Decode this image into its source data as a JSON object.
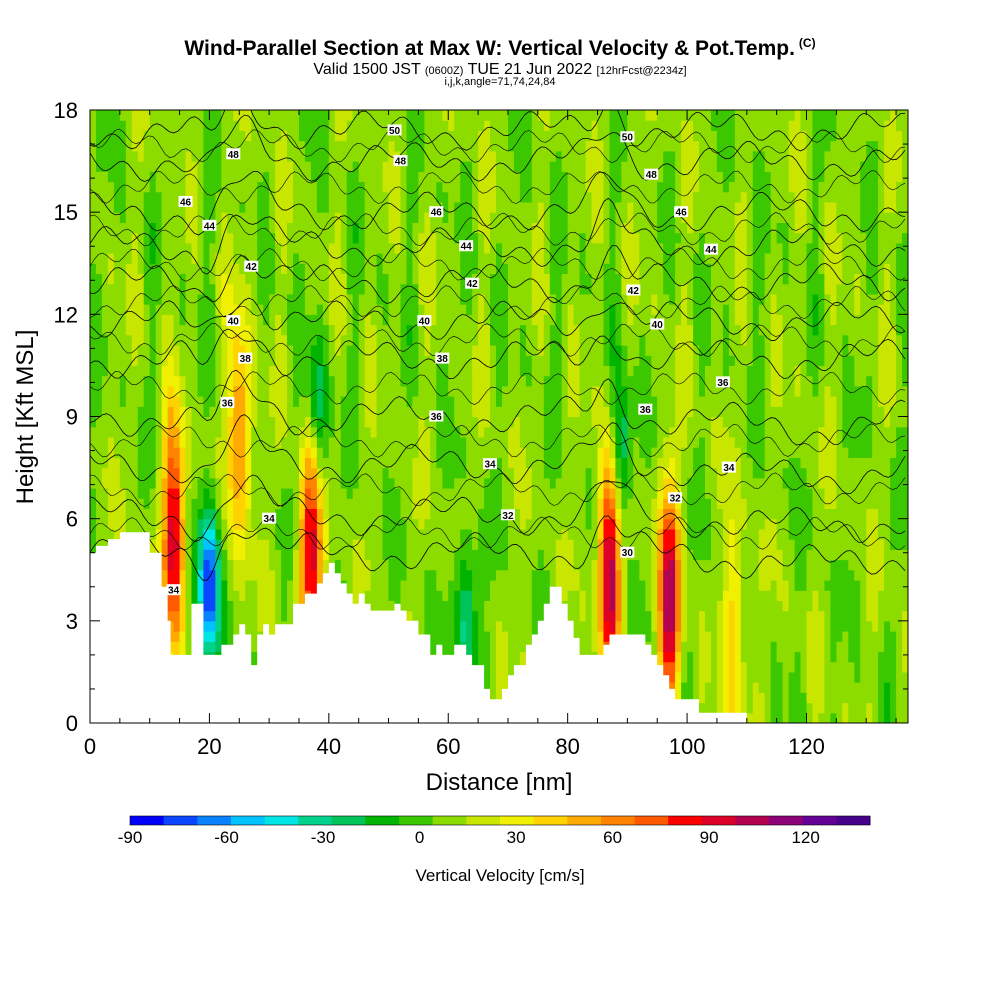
{
  "title": {
    "main": "Wind-Parallel Section at Max W: Vertical Velocity & Pot.Temp.",
    "copyright": "(C)",
    "valid_prefix": "Valid 1500 JST",
    "valid_utc": "(0600Z)",
    "valid_date": "TUE 21 Jun 2022",
    "forecast": "[12hrFcst@2234z]",
    "indices": "i,j,k,angle=71,74,24,84"
  },
  "chart_data": {
    "type": "heatmap",
    "xlabel": "Distance [nm]",
    "ylabel": "Height [Kft MSL]",
    "xlim": [
      0,
      137
    ],
    "ylim": [
      0,
      18
    ],
    "x_ticks": [
      0,
      20,
      40,
      60,
      80,
      100,
      120
    ],
    "y_ticks": [
      0,
      3,
      6,
      9,
      12,
      15,
      18
    ],
    "colorbar": {
      "label": "Vertical Velocity [cm/s]",
      "min": -90,
      "max": 130,
      "step": 10,
      "tick_values": [
        -90,
        -60,
        -30,
        0,
        30,
        60,
        90,
        120
      ],
      "colors": [
        "#0000ff",
        "#0a46ff",
        "#0a82ff",
        "#00c3ff",
        "#00e6e6",
        "#00d28c",
        "#00c35a",
        "#00b400",
        "#3cc800",
        "#8cdc00",
        "#c8e600",
        "#f0f000",
        "#ffd200",
        "#ffaa00",
        "#ff8200",
        "#ff5a00",
        "#ff0000",
        "#dc0028",
        "#b40050",
        "#8c0078",
        "#640096",
        "#46008c"
      ]
    },
    "updraft_cores": [
      {
        "x": 14,
        "y": 5.5,
        "w_cms": 85
      },
      {
        "x": 25,
        "y": 8.5,
        "w_cms": 55
      },
      {
        "x": 37,
        "y": 5.0,
        "w_cms": 85
      },
      {
        "x": 87,
        "y": 4.5,
        "w_cms": 95
      },
      {
        "x": 97,
        "y": 3.5,
        "w_cms": 90
      },
      {
        "x": 108,
        "y": 2.5,
        "w_cms": 35
      }
    ],
    "downdraft_cores": [
      {
        "x": 20,
        "y": 4.0,
        "w_cms": -90
      },
      {
        "x": 63,
        "y": 3.0,
        "w_cms": -45
      },
      {
        "x": 89,
        "y": 8.0,
        "w_cms": -45
      },
      {
        "x": 38,
        "y": 9.0,
        "w_cms": -40
      }
    ],
    "terrain": [
      [
        0,
        5.0
      ],
      [
        1,
        5.0
      ],
      [
        1,
        5.2
      ],
      [
        3,
        5.2
      ],
      [
        3,
        5.4
      ],
      [
        5,
        5.4
      ],
      [
        5,
        5.6
      ],
      [
        10,
        5.6
      ],
      [
        10,
        5.0
      ],
      [
        12,
        5.0
      ],
      [
        12,
        4.0
      ],
      [
        13,
        4.0
      ],
      [
        13,
        3.0
      ],
      [
        13.5,
        3.0
      ],
      [
        13.5,
        2.0
      ],
      [
        17,
        2.0
      ],
      [
        17,
        3.5
      ],
      [
        19,
        3.5
      ],
      [
        19,
        2.0
      ],
      [
        22,
        2.0
      ],
      [
        22,
        2.3
      ],
      [
        24,
        2.3
      ],
      [
        24,
        2.6
      ],
      [
        25,
        2.6
      ],
      [
        25,
        2.9
      ],
      [
        26,
        2.9
      ],
      [
        26,
        2.6
      ],
      [
        27,
        2.6
      ],
      [
        27,
        1.7
      ],
      [
        28,
        1.7
      ],
      [
        28,
        2.6
      ],
      [
        29,
        2.6
      ],
      [
        29,
        2.9
      ],
      [
        30,
        2.9
      ],
      [
        30,
        2.6
      ],
      [
        31,
        2.6
      ],
      [
        31,
        2.9
      ],
      [
        34,
        2.9
      ],
      [
        34,
        3.5
      ],
      [
        36,
        3.5
      ],
      [
        36,
        3.8
      ],
      [
        38,
        3.8
      ],
      [
        38,
        4.1
      ],
      [
        39,
        4.1
      ],
      [
        39,
        4.4
      ],
      [
        40,
        4.4
      ],
      [
        40,
        4.7
      ],
      [
        41,
        4.7
      ],
      [
        41,
        4.4
      ],
      [
        42,
        4.4
      ],
      [
        42,
        4.1
      ],
      [
        43,
        4.1
      ],
      [
        43,
        3.8
      ],
      [
        44,
        3.8
      ],
      [
        44,
        3.5
      ],
      [
        45,
        3.5
      ],
      [
        45,
        3.8
      ],
      [
        46,
        3.8
      ],
      [
        46,
        3.5
      ],
      [
        47,
        3.5
      ],
      [
        47,
        3.3
      ],
      [
        51,
        3.3
      ],
      [
        51,
        3.5
      ],
      [
        52,
        3.5
      ],
      [
        52,
        3.3
      ],
      [
        53,
        3.3
      ],
      [
        53,
        3.0
      ],
      [
        55,
        3.0
      ],
      [
        55,
        2.6
      ],
      [
        57,
        2.6
      ],
      [
        57,
        2.0
      ],
      [
        58,
        2.0
      ],
      [
        58,
        2.3
      ],
      [
        59,
        2.3
      ],
      [
        59,
        2.0
      ],
      [
        61,
        2.0
      ],
      [
        61,
        2.3
      ],
      [
        63,
        2.3
      ],
      [
        63,
        2.0
      ],
      [
        64,
        2.0
      ],
      [
        64,
        1.7
      ],
      [
        66,
        1.7
      ],
      [
        66,
        1.0
      ],
      [
        67,
        1.0
      ],
      [
        67,
        0.7
      ],
      [
        69,
        0.7
      ],
      [
        69,
        1.0
      ],
      [
        70,
        1.0
      ],
      [
        70,
        1.4
      ],
      [
        71,
        1.4
      ],
      [
        71,
        1.7
      ],
      [
        73,
        1.7
      ],
      [
        73,
        2.3
      ],
      [
        74,
        2.3
      ],
      [
        74,
        2.6
      ],
      [
        75,
        2.6
      ],
      [
        75,
        3.0
      ],
      [
        76,
        3.0
      ],
      [
        76,
        3.5
      ],
      [
        77,
        3.5
      ],
      [
        77,
        4.0
      ],
      [
        79,
        4.0
      ],
      [
        79,
        3.5
      ],
      [
        80,
        3.5
      ],
      [
        80,
        3.0
      ],
      [
        81,
        3.0
      ],
      [
        81,
        2.5
      ],
      [
        82,
        2.5
      ],
      [
        82,
        2.0
      ],
      [
        86,
        2.0
      ],
      [
        86,
        2.3
      ],
      [
        87,
        2.3
      ],
      [
        87,
        2.6
      ],
      [
        93,
        2.6
      ],
      [
        93,
        2.3
      ],
      [
        94,
        2.3
      ],
      [
        94,
        2.0
      ],
      [
        95,
        2.0
      ],
      [
        95,
        1.7
      ],
      [
        96,
        1.7
      ],
      [
        96,
        1.4
      ],
      [
        97,
        1.4
      ],
      [
        97,
        1.0
      ],
      [
        98,
        1.0
      ],
      [
        98,
        0.7
      ],
      [
        102,
        0.7
      ],
      [
        102,
        0.3
      ],
      [
        110,
        0.3
      ],
      [
        110,
        0.0
      ],
      [
        137,
        0.0
      ]
    ],
    "isentropes": [
      {
        "theta": 30,
        "label_x": 90,
        "label_y": 5.0
      },
      {
        "theta": 32,
        "label_x": 70,
        "label_y": 6.1
      },
      {
        "theta": 34,
        "label_x": 67,
        "label_y": 7.6
      },
      {
        "theta": 36,
        "label_x": 58,
        "label_y": 9.0
      },
      {
        "theta": 38,
        "label_x": 59,
        "label_y": 10.7
      },
      {
        "theta": 40,
        "label_x": 56,
        "label_y": 11.8
      },
      {
        "theta": 42,
        "label_x": 63,
        "label_y": 12.9
      },
      {
        "theta": 44,
        "label_x": 62,
        "label_y": 14.0
      },
      {
        "theta": 46,
        "label_x": 58,
        "label_y": 15.0
      },
      {
        "theta": 48,
        "label_x": 52,
        "label_y": 16.5
      },
      {
        "theta": 50,
        "label_x": 51,
        "label_y": 17.4
      }
    ],
    "contour_labels": [
      {
        "text": "34",
        "x": 14,
        "y": 3.9
      },
      {
        "text": "34",
        "x": 30,
        "y": 6.0
      },
      {
        "text": "36",
        "x": 23,
        "y": 9.4
      },
      {
        "text": "38",
        "x": 26,
        "y": 10.7
      },
      {
        "text": "40",
        "x": 24,
        "y": 11.8
      },
      {
        "text": "42",
        "x": 27,
        "y": 13.4
      },
      {
        "text": "44",
        "x": 20,
        "y": 14.6
      },
      {
        "text": "46",
        "x": 16,
        "y": 15.3
      },
      {
        "text": "48",
        "x": 24,
        "y": 16.7
      },
      {
        "text": "50",
        "x": 51,
        "y": 17.4
      },
      {
        "text": "48",
        "x": 52,
        "y": 16.5
      },
      {
        "text": "46",
        "x": 58,
        "y": 15.0
      },
      {
        "text": "44",
        "x": 63,
        "y": 14.0
      },
      {
        "text": "42",
        "x": 64,
        "y": 12.9
      },
      {
        "text": "40",
        "x": 56,
        "y": 11.8
      },
      {
        "text": "38",
        "x": 59,
        "y": 10.7
      },
      {
        "text": "36",
        "x": 58,
        "y": 9.0
      },
      {
        "text": "34",
        "x": 67,
        "y": 7.6
      },
      {
        "text": "32",
        "x": 70,
        "y": 6.1
      },
      {
        "text": "30",
        "x": 90,
        "y": 5.0
      },
      {
        "text": "32",
        "x": 98,
        "y": 6.6
      },
      {
        "text": "34",
        "x": 107,
        "y": 7.5
      },
      {
        "text": "36",
        "x": 93,
        "y": 9.2
      },
      {
        "text": "36",
        "x": 106,
        "y": 10.0
      },
      {
        "text": "40",
        "x": 95,
        "y": 11.7
      },
      {
        "text": "42",
        "x": 91,
        "y": 12.7
      },
      {
        "text": "44",
        "x": 104,
        "y": 13.9
      },
      {
        "text": "46",
        "x": 99,
        "y": 15.0
      },
      {
        "text": "48",
        "x": 94,
        "y": 16.1
      },
      {
        "text": "50",
        "x": 90,
        "y": 17.2
      }
    ]
  }
}
